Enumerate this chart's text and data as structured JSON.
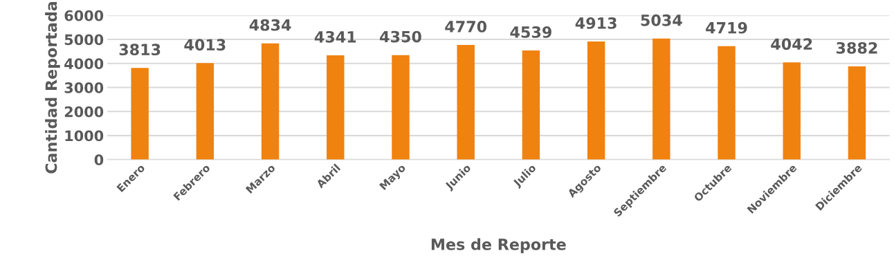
{
  "chart_data": {
    "type": "bar",
    "xlabel": "Mes de Reporte",
    "ylabel": "Cantidad Reportada",
    "categories": [
      "Enero",
      "Febrero",
      "Marzo",
      "Abril",
      "Mayo",
      "Junio",
      "Julio",
      "Agosto",
      "Septiembre",
      "Octubre",
      "Noviembre",
      "Diciembre"
    ],
    "values": [
      3813,
      4013,
      4834,
      4341,
      4350,
      4770,
      4539,
      4913,
      5034,
      4719,
      4042,
      3882
    ],
    "color": "#f0820f",
    "ylim": [
      0,
      6000
    ],
    "yticks": [
      0,
      1000,
      2000,
      3000,
      4000,
      5000,
      6000
    ],
    "grid": "y",
    "data_labels": true
  }
}
